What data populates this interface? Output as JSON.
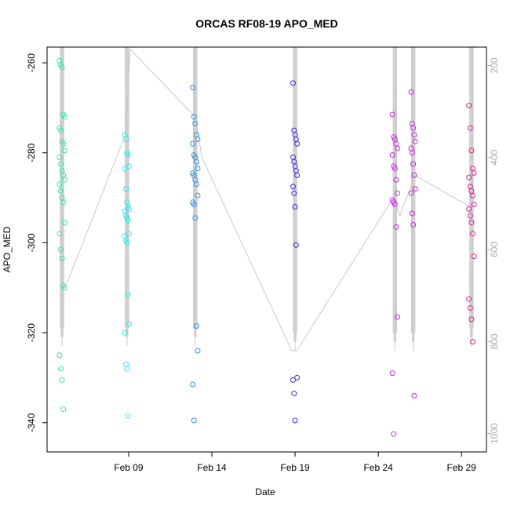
{
  "chart_data": {
    "type": "scatter",
    "title": "ORCAS RF08-19 APO_MED",
    "xlabel": "Date",
    "ylabel": "APO_MED",
    "x_ticks": [
      "Feb 09",
      "Feb 14",
      "Feb 19",
      "Feb 24",
      "Feb 29"
    ],
    "x_tick_day": [
      9,
      14,
      19,
      24,
      29
    ],
    "xlim_day": [
      4.1,
      30.5
    ],
    "ylim": [
      -346.5,
      -256.5
    ],
    "y_ticks": [
      -340,
      -320,
      -300,
      -280,
      -260
    ],
    "y2_ticks": [
      1000,
      800,
      600,
      400,
      200
    ],
    "y2lim": [
      1040,
      160
    ],
    "grid": false,
    "legend": "none",
    "trace_color": "#c8c8c8",
    "series": [
      {
        "color": "#33e6a8",
        "day": 5.0,
        "day_jitter": 0.15,
        "values": [
          -259.5,
          -260.5,
          -261.0,
          -271.5,
          -272.0,
          -274.5,
          -275.0,
          -277.5,
          -278.0,
          -279.5,
          -281.0,
          -282.5,
          -284.0,
          -285.0,
          -286.0,
          -287.0,
          -288.5,
          -290.0,
          -291.0,
          -295.5,
          -298.0,
          -301.5,
          -303.5,
          -309.5,
          -310.0,
          -325.0,
          -328.0,
          -330.5,
          -337.0
        ]
      },
      {
        "color": "#2ee8f0",
        "day": 8.9,
        "day_jitter": 0.12,
        "values": [
          -276.0,
          -277.0,
          -280.0,
          -280.5,
          -283.0,
          -283.5,
          -288.0,
          -291.0,
          -292.0,
          -292.5,
          -293.0,
          -294.0,
          -294.5,
          -295.0,
          -298.0,
          -298.5,
          -299.5,
          -300.0,
          -311.5,
          -318.0,
          -320.0,
          -327.0,
          -328.0,
          -338.5
        ]
      },
      {
        "color": "#2f8ff0",
        "day": 13.0,
        "day_jitter": 0.15,
        "values": [
          -265.5,
          -272.0,
          -273.5,
          -276.0,
          -277.0,
          -278.0,
          -280.5,
          -281.0,
          -282.0,
          -283.5,
          -284.5,
          -285.0,
          -286.0,
          -287.0,
          -289.5,
          -291.0,
          -291.5,
          -294.5,
          -318.5,
          -324.0,
          -331.5,
          -339.5
        ]
      },
      {
        "color": "#4b22e8",
        "day": 19.0,
        "day_jitter": 0.12,
        "values": [
          -264.5,
          -275.0,
          -276.0,
          -277.0,
          -278.0,
          -281.0,
          -282.0,
          -283.0,
          -284.0,
          -285.0,
          -287.5,
          -289.0,
          -292.0,
          -300.5,
          -330.0,
          -330.5,
          -333.5,
          -339.5
        ]
      },
      {
        "color": "#cc26e8",
        "day": 25.0,
        "day_jitter": 0.15,
        "values": [
          -271.5,
          -276.5,
          -277.0,
          -278.0,
          -279.0,
          -280.5,
          -283.0,
          -283.5,
          -286.0,
          -289.0,
          -290.5,
          -291.0,
          -291.5,
          -296.5,
          -316.5,
          -329.0,
          -342.5
        ]
      },
      {
        "color": "#d021d8",
        "day": 26.1,
        "day_jitter": 0.12,
        "values": [
          -266.5,
          -273.5,
          -274.5,
          -276.0,
          -277.5,
          -279.0,
          -280.0,
          -282.5,
          -285.0,
          -288.0,
          -289.0,
          -293.5,
          -296.0,
          -334.0
        ]
      },
      {
        "color": "#e0208e",
        "day": 29.6,
        "day_jitter": 0.15,
        "values": [
          -269.5,
          -274.5,
          -279.5,
          -283.5,
          -284.5,
          -285.5,
          -287.5,
          -288.5,
          -289.5,
          -291.5,
          -292.5,
          -294.0,
          -295.5,
          -298.0,
          -303.0,
          -312.5,
          -314.5,
          -317.0,
          -322.0
        ]
      }
    ],
    "trace_lines": [
      {
        "day": 5.0,
        "top": -256.5,
        "bottom": -323.0
      },
      {
        "day": 8.9,
        "top": -256.5,
        "bottom": -323.0
      },
      {
        "day": 13.0,
        "top": -256.5,
        "bottom": -323.0
      },
      {
        "day": 19.0,
        "top": -256.5,
        "bottom": -324.0
      },
      {
        "day": 25.0,
        "top": -256.5,
        "bottom": -324.0
      },
      {
        "day": 26.1,
        "top": -256.5,
        "bottom": -324.0
      },
      {
        "day": 29.6,
        "top": -256.5,
        "bottom": -323.0
      }
    ],
    "connect_path": [
      {
        "day": 5.3,
        "value": -309.0
      },
      {
        "day": 8.8,
        "value": -276.0
      },
      {
        "day": 9.1,
        "value": -257.0
      },
      {
        "day": 13.0,
        "value": -272.0
      },
      {
        "day": 13.4,
        "value": -281.0
      },
      {
        "day": 18.8,
        "value": -324.0
      },
      {
        "day": 19.1,
        "value": -324.0
      },
      {
        "day": 24.9,
        "value": -290.0
      },
      {
        "day": 25.3,
        "value": -294.0
      },
      {
        "day": 26.2,
        "value": -285.0
      },
      {
        "day": 29.5,
        "value": -292.0
      }
    ]
  }
}
